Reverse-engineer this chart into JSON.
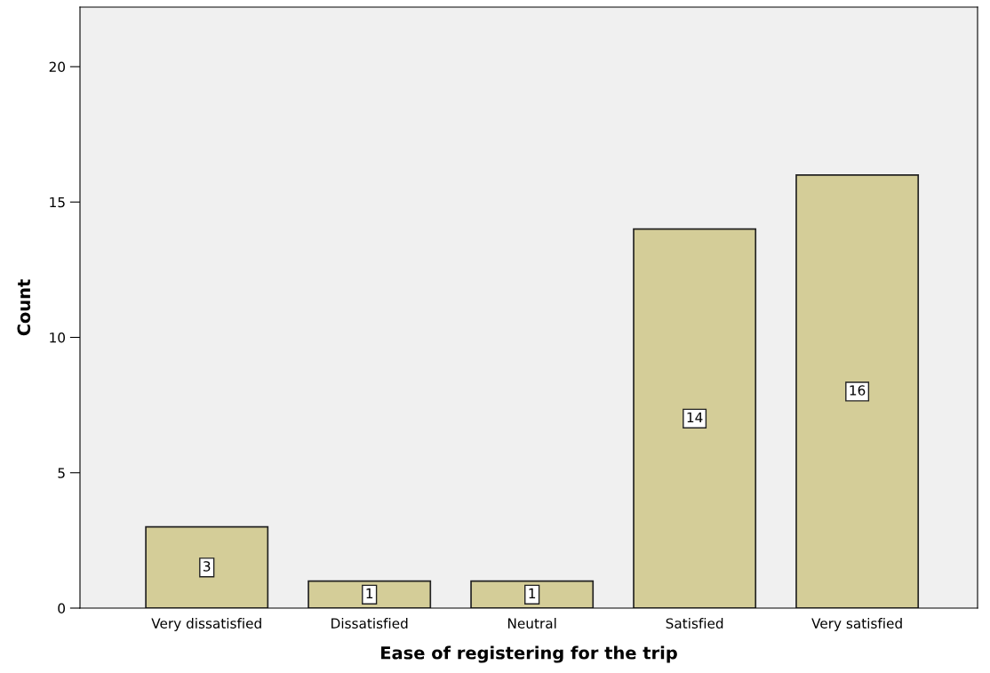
{
  "chart_data": {
    "type": "bar",
    "xlabel": "Ease of registering for the trip",
    "ylabel": "Count",
    "categories": [
      "Very dissatisfied",
      "Dissatisfied",
      "Neutral",
      "Satisfied",
      "Very satisfied"
    ],
    "values": [
      3,
      1,
      1,
      14,
      16
    ],
    "color": "#d4cd98",
    "ylim": [
      0,
      22.2
    ],
    "yticks": [
      0,
      5,
      10,
      15,
      20
    ],
    "grid": false,
    "legend": false,
    "data_labels": true
  }
}
